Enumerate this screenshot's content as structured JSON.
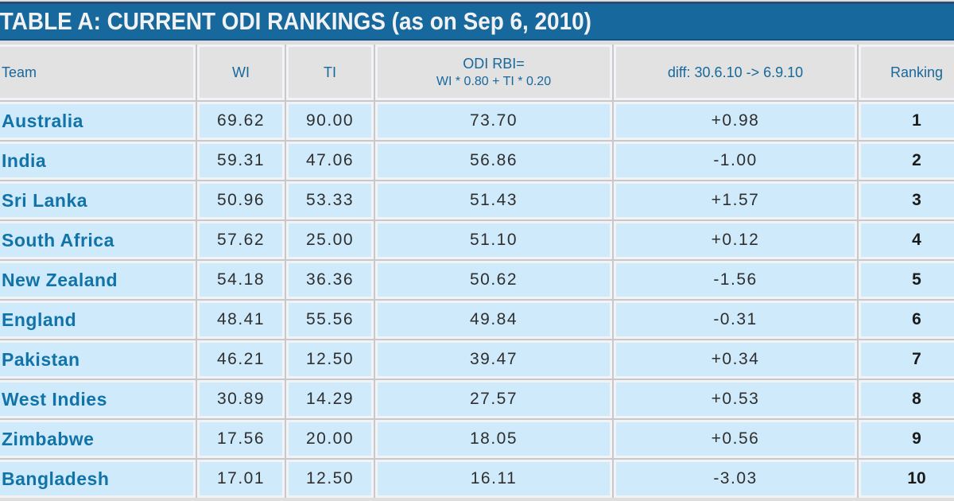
{
  "title": "TABLE A: CURRENT ODI RANKINGS (as on Sep 6, 2010)",
  "table": {
    "columns": [
      {
        "key": "team",
        "label": "Team"
      },
      {
        "key": "wi",
        "label": "WI"
      },
      {
        "key": "ti",
        "label": "TI"
      },
      {
        "key": "odi_rbi",
        "label": "ODI RBI=",
        "label2": "WI * 0.80 + TI * 0.20"
      },
      {
        "key": "diff",
        "label": "diff: 30.6.10 -> 6.9.10"
      },
      {
        "key": "ranking",
        "label": "Ranking"
      }
    ],
    "rows": [
      {
        "team": "Australia",
        "wi": "69.62",
        "ti": "90.00",
        "odi_rbi": "73.70",
        "diff": "+0.98",
        "ranking": "1"
      },
      {
        "team": "India",
        "wi": "59.31",
        "ti": "47.06",
        "odi_rbi": "56.86",
        "diff": "-1.00",
        "ranking": "2"
      },
      {
        "team": "Sri Lanka",
        "wi": "50.96",
        "ti": "53.33",
        "odi_rbi": "51.43",
        "diff": "+1.57",
        "ranking": "3"
      },
      {
        "team": "South Africa",
        "wi": "57.62",
        "ti": "25.00",
        "odi_rbi": "51.10",
        "diff": "+0.12",
        "ranking": "4"
      },
      {
        "team": "New Zealand",
        "wi": "54.18",
        "ti": "36.36",
        "odi_rbi": "50.62",
        "diff": "-1.56",
        "ranking": "5"
      },
      {
        "team": "England",
        "wi": "48.41",
        "ti": "55.56",
        "odi_rbi": "49.84",
        "diff": "-0.31",
        "ranking": "6"
      },
      {
        "team": "Pakistan",
        "wi": "46.21",
        "ti": "12.50",
        "odi_rbi": "39.47",
        "diff": "+0.34",
        "ranking": "7"
      },
      {
        "team": "West Indies",
        "wi": "30.89",
        "ti": "14.29",
        "odi_rbi": "27.57",
        "diff": "+0.53",
        "ranking": "8"
      },
      {
        "team": "Zimbabwe",
        "wi": "17.56",
        "ti": "20.00",
        "odi_rbi": "18.05",
        "diff": "+0.56",
        "ranking": "9"
      },
      {
        "team": "Bangladesh",
        "wi": "17.01",
        "ti": "12.50",
        "odi_rbi": "16.11",
        "diff": "-3.03",
        "ranking": "10"
      }
    ]
  },
  "chart_data": {
    "type": "table",
    "title": "TABLE A: CURRENT ODI RANKINGS (as on Sep 6, 2010)",
    "columns": [
      "Team",
      "WI",
      "TI",
      "ODI RBI= WI * 0.80 + TI * 0.20",
      "diff: 30.6.10 -> 6.9.10",
      "Ranking"
    ],
    "rows": [
      [
        "Australia",
        69.62,
        90.0,
        73.7,
        0.98,
        1
      ],
      [
        "India",
        59.31,
        47.06,
        56.86,
        -1.0,
        2
      ],
      [
        "Sri Lanka",
        50.96,
        53.33,
        51.43,
        1.57,
        3
      ],
      [
        "South Africa",
        57.62,
        25.0,
        51.1,
        0.12,
        4
      ],
      [
        "New Zealand",
        54.18,
        36.36,
        50.62,
        -1.56,
        5
      ],
      [
        "England",
        48.41,
        55.56,
        49.84,
        -0.31,
        6
      ],
      [
        "Pakistan",
        46.21,
        12.5,
        39.47,
        0.34,
        7
      ],
      [
        "West Indies",
        30.89,
        14.29,
        27.57,
        0.53,
        8
      ],
      [
        "Zimbabwe",
        17.56,
        20.0,
        18.05,
        0.56,
        9
      ],
      [
        "Bangladesh",
        17.01,
        12.5,
        16.11,
        -3.03,
        10
      ]
    ]
  },
  "colors": {
    "title_bar_bg": "#17689d",
    "title_bar_top_border": "#2a4b74",
    "title_text": "#f2f2f2",
    "header_cell_bg": "#e2e2e2",
    "header_text": "#16689d",
    "data_cell_bg": "#cfeafa",
    "team_text": "#1273a9",
    "number_text": "#2f2f2f",
    "grid_line": "#c8c8cc",
    "cell_border_light": "#f2f3f5",
    "page_bg": "#dedede"
  }
}
